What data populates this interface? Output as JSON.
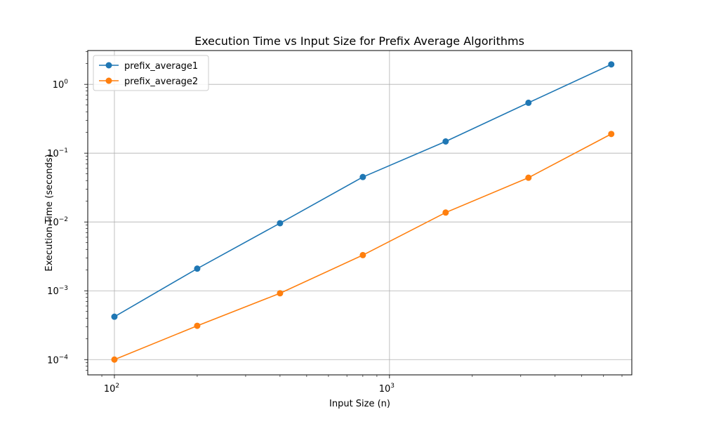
{
  "chart_data": {
    "type": "line",
    "title": "Execution Time vs Input Size for Prefix Average Algorithms",
    "xlabel": "Input Size (n)",
    "ylabel": "Execution Time (seconds)",
    "xscale": "log",
    "yscale": "log",
    "xlim": [
      80,
      7600
    ],
    "ylim": [
      6e-05,
      3.1
    ],
    "grid": true,
    "legend_position": "top-left",
    "x": [
      100,
      200,
      400,
      800,
      1600,
      3200,
      6400
    ],
    "x_ticks": [
      {
        "value": 100,
        "base": "10",
        "exp": "2"
      },
      {
        "value": 1000,
        "base": "10",
        "exp": "3"
      }
    ],
    "y_ticks": [
      {
        "value": 0.0001,
        "base": "10",
        "exp": "−4"
      },
      {
        "value": 0.001,
        "base": "10",
        "exp": "−3"
      },
      {
        "value": 0.01,
        "base": "10",
        "exp": "−2"
      },
      {
        "value": 0.1,
        "base": "10",
        "exp": "−1"
      },
      {
        "value": 1,
        "base": "10",
        "exp": "0"
      }
    ],
    "series": [
      {
        "name": "prefix_average1",
        "color": "#1f77b4",
        "values": [
          0.00042,
          0.0021,
          0.0096,
          0.045,
          0.148,
          0.54,
          1.95
        ]
      },
      {
        "name": "prefix_average2",
        "color": "#ff7f0e",
        "values": [
          0.0001,
          0.00031,
          0.00092,
          0.0033,
          0.0137,
          0.044,
          0.19
        ]
      }
    ]
  }
}
